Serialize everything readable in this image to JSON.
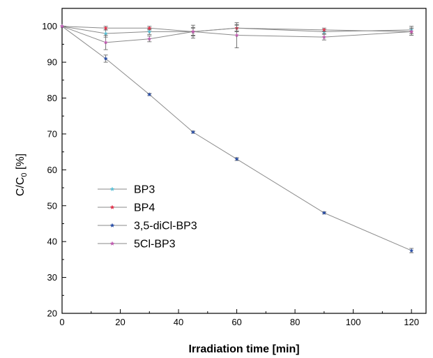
{
  "chart_data": {
    "type": "line",
    "xlabel": "Irradiation time [min]",
    "ylabel": {
      "main": "C/C",
      "sub": "0",
      "unit": " [%]"
    },
    "xlim": [
      0,
      125
    ],
    "ylim": [
      20,
      105
    ],
    "xticks": [
      0,
      20,
      40,
      60,
      80,
      100,
      120
    ],
    "yticks": [
      20,
      30,
      40,
      50,
      60,
      70,
      80,
      90,
      100
    ],
    "grid": false,
    "legend_position": "center-left",
    "series": [
      {
        "name": "BP3",
        "color": "#5bc0d6",
        "x": [
          0,
          15,
          30,
          45,
          60,
          90,
          120
        ],
        "y": [
          100,
          98,
          98.5,
          98.5,
          99.5,
          98.5,
          99
        ],
        "err": [
          0,
          1.0,
          0.8,
          1.2,
          1.0,
          0.6,
          1.0
        ]
      },
      {
        "name": "BP4",
        "color": "#e0314a",
        "x": [
          0,
          15,
          30,
          45,
          60,
          90,
          120
        ],
        "y": [
          100,
          99.5,
          99.5,
          98.5,
          99.5,
          99,
          98.5
        ],
        "err": [
          0,
          0.5,
          0.5,
          1.0,
          0.8,
          0.5,
          1.0
        ]
      },
      {
        "name": "3,5-diCl-BP3",
        "color": "#2a4fa8",
        "x": [
          0,
          15,
          30,
          45,
          60,
          90,
          120
        ],
        "y": [
          100,
          91,
          81,
          70.5,
          63,
          48,
          37.5
        ],
        "err": [
          0,
          1.0,
          0.3,
          0.3,
          0.4,
          0.3,
          0.6
        ]
      },
      {
        "name": "5Cl-BP3",
        "color": "#c05ab0",
        "x": [
          0,
          15,
          30,
          45,
          60,
          90,
          120
        ],
        "y": [
          100,
          95.5,
          96.5,
          98.5,
          97.5,
          97,
          98.5
        ],
        "err": [
          0,
          2.0,
          0.8,
          1.8,
          3.5,
          0.8,
          1.0
        ]
      }
    ]
  }
}
